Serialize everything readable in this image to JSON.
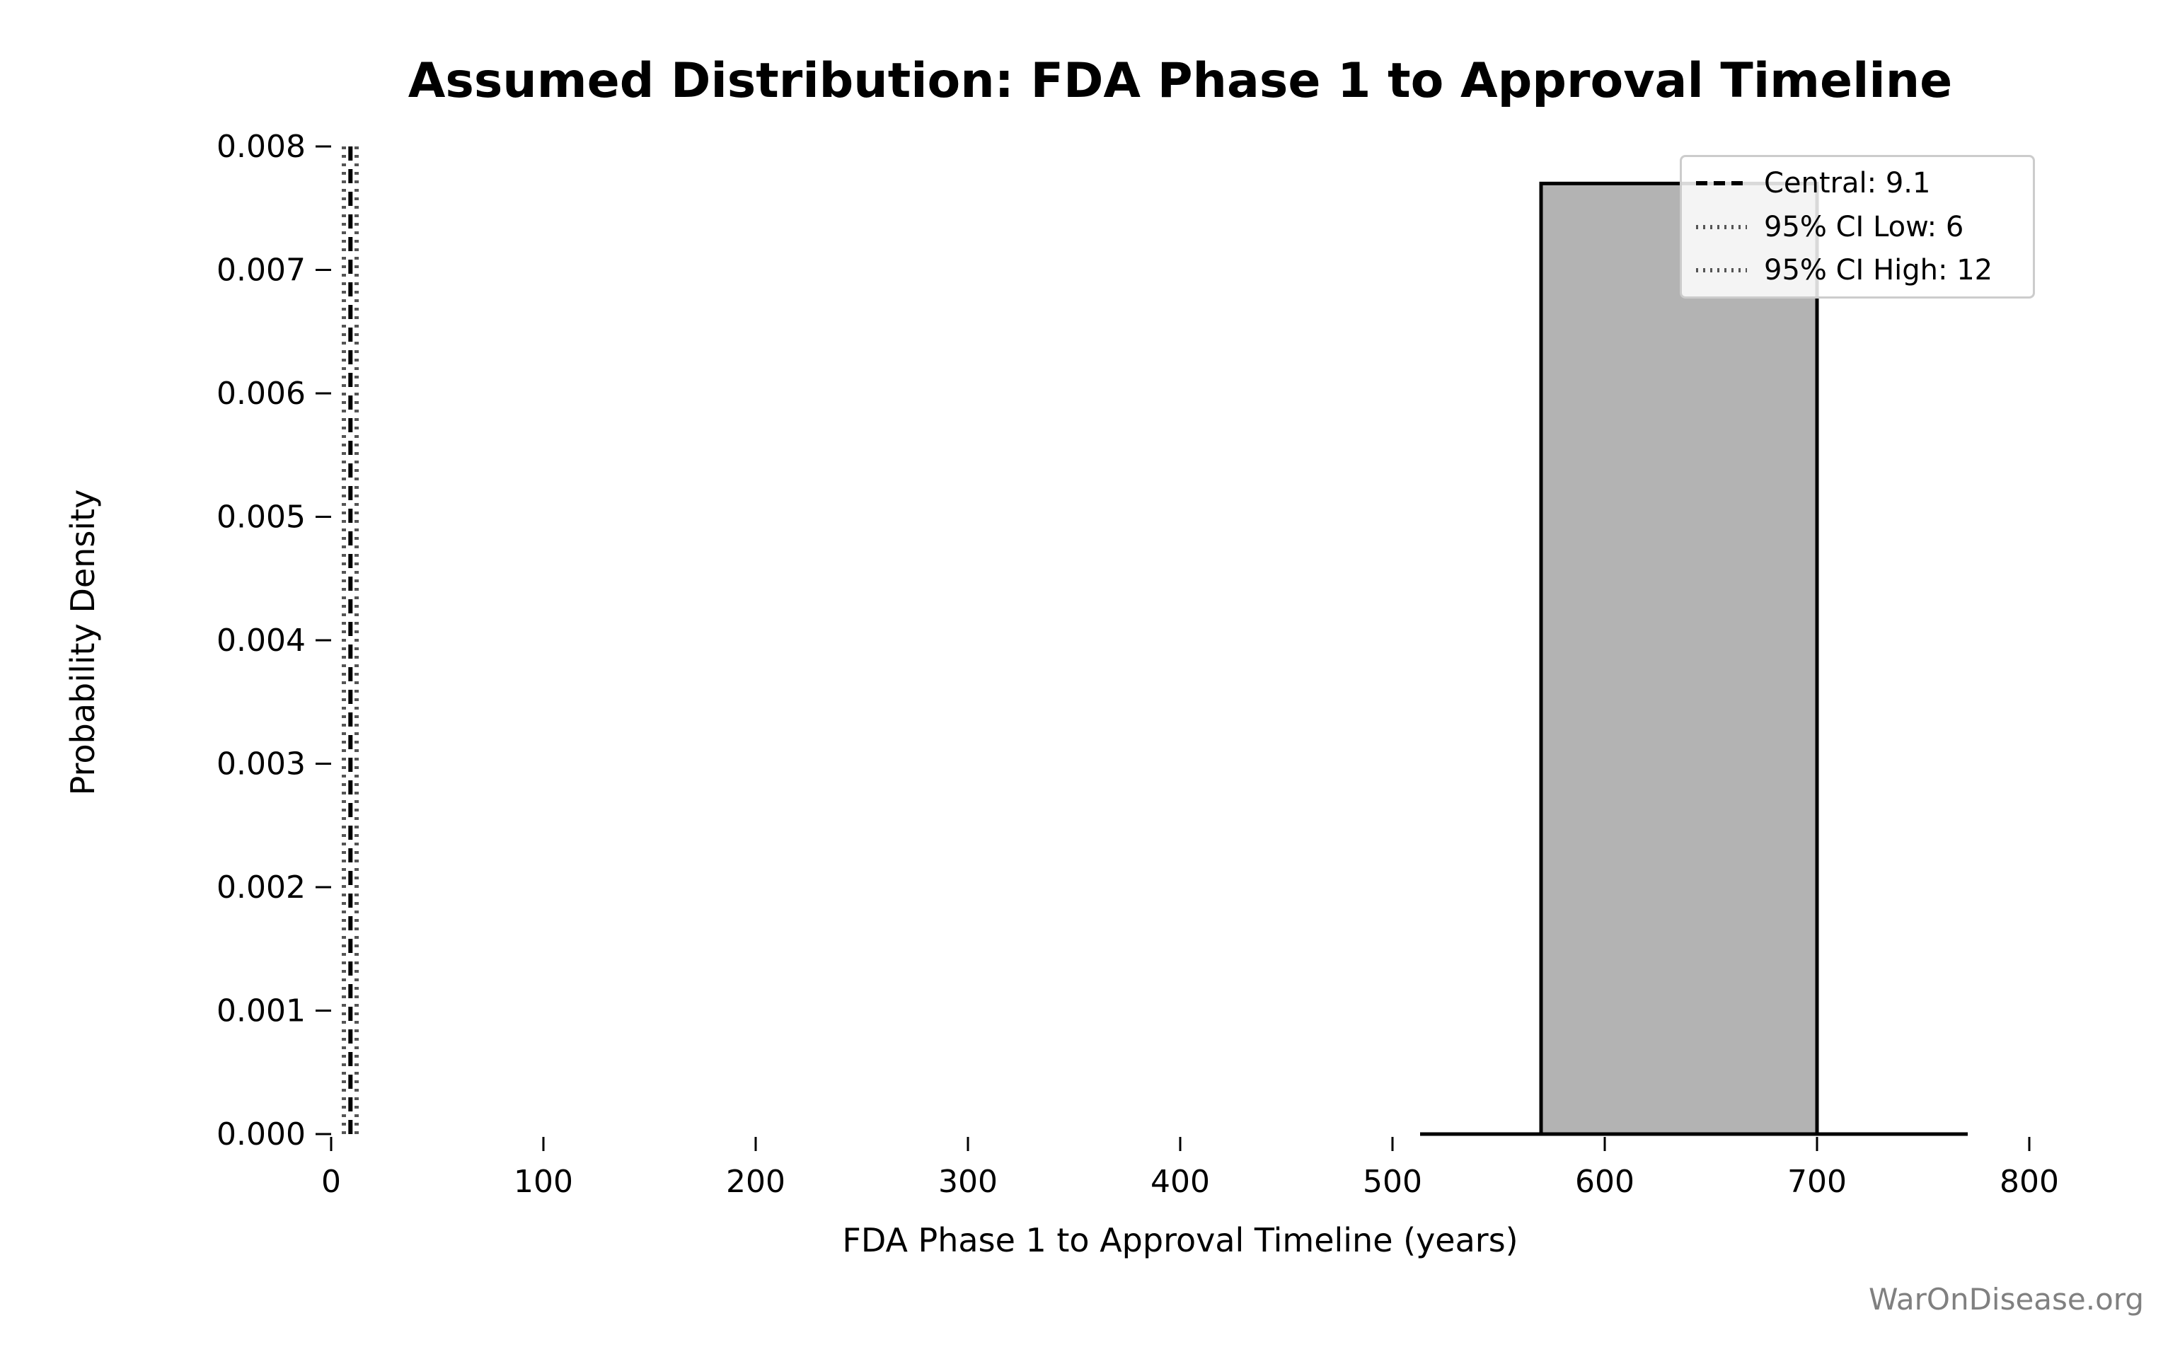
{
  "chart_data": {
    "type": "histogram",
    "title": "Assumed Distribution: FDA Phase 1 to Approval Timeline",
    "xlabel": "FDA Phase 1 to Approval Timeline (years)",
    "ylabel": "Probability Density",
    "watermark": "WarOnDisease.org",
    "xlim": [
      0,
      800
    ],
    "ylim": [
      0,
      0.008
    ],
    "grid": false,
    "legend_position": "upper right",
    "x_ticks": {
      "values": [
        0,
        100,
        200,
        300,
        400,
        500,
        600,
        700,
        800
      ],
      "labels": [
        "0",
        "100",
        "200",
        "300",
        "400",
        "500",
        "600",
        "700",
        "800"
      ]
    },
    "y_ticks": {
      "values": [
        0.0,
        0.001,
        0.002,
        0.003,
        0.004,
        0.005,
        0.006,
        0.007,
        0.008
      ],
      "labels": [
        "0.000",
        "0.001",
        "0.002",
        "0.003",
        "0.004",
        "0.005",
        "0.006",
        "0.007",
        "0.008"
      ]
    },
    "series": {
      "histogram_bar": {
        "x_start": 570,
        "x_end": 700,
        "density": 0.0077
      },
      "density_baseline": {
        "x_start": 513,
        "x_end": 771,
        "density": 0
      }
    },
    "markers": [
      {
        "id": "central",
        "value": 9.1,
        "label": "Central: 9.1",
        "style": "dashed",
        "color": "#000000"
      },
      {
        "id": "ci-low",
        "value": 6,
        "label": "95% CI Low: 6",
        "style": "dotted",
        "color": "#555555"
      },
      {
        "id": "ci-high",
        "value": 12,
        "label": "95% CI High: 12",
        "style": "dotted",
        "color": "#555555"
      }
    ],
    "colors": {
      "bar_fill": "#b3b3b3",
      "bar_edge": "#000000",
      "axis": "#000000",
      "watermark": "#808080"
    }
  }
}
